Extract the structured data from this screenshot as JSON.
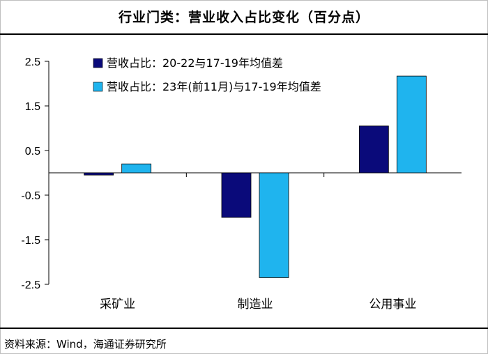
{
  "title": "行业门类：营业收入占比变化（百分点）",
  "source": "资料来源：Wind，海通证券研究所",
  "colors": {
    "series1": "#0a0a7a",
    "series2": "#1fb4ee"
  },
  "chart_data": {
    "type": "bar",
    "title": "行业门类：营业收入占比变化（百分点）",
    "categories": [
      "采矿业",
      "制造业",
      "公用事业"
    ],
    "series": [
      {
        "name": "营收占比：20-22与17-19年均值差",
        "values": [
          -0.05,
          -1.0,
          1.05
        ]
      },
      {
        "name": "营收占比：23年(前11月)与17-19年均值差",
        "values": [
          0.2,
          -2.35,
          2.17
        ]
      }
    ],
    "yticks": [
      "2.5",
      "1.5",
      "0.5",
      "-0.5",
      "-1.5",
      "-2.5"
    ],
    "ylim": [
      -2.5,
      2.5
    ],
    "xlabel": "",
    "ylabel": "",
    "legend": "top-left"
  }
}
